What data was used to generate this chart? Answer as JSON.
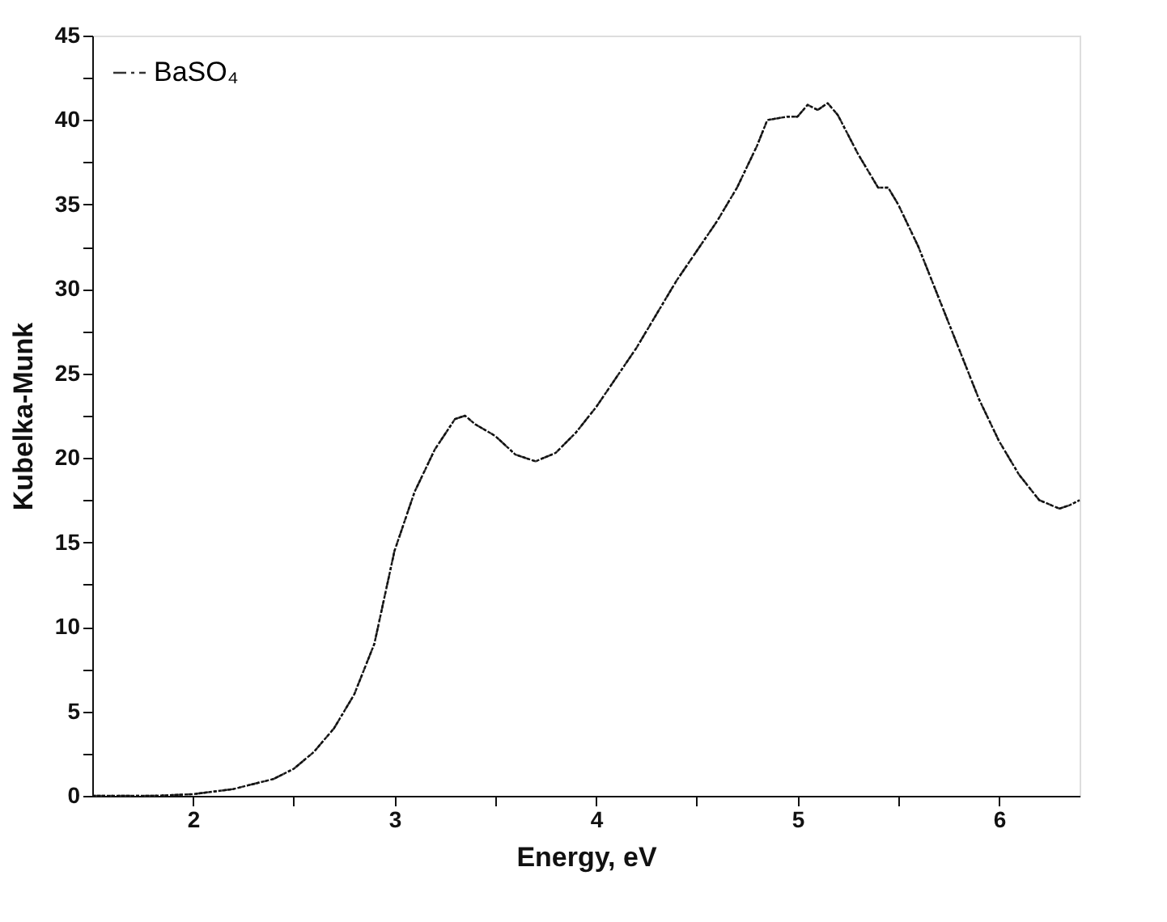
{
  "chart_data": {
    "type": "line",
    "xlabel": "Energy, eV",
    "ylabel": "Kubelka-Munk",
    "x": [
      1.5,
      1.8,
      2.0,
      2.2,
      2.4,
      2.5,
      2.6,
      2.7,
      2.8,
      2.9,
      3.0,
      3.1,
      3.2,
      3.3,
      3.35,
      3.4,
      3.5,
      3.6,
      3.7,
      3.8,
      3.9,
      4.0,
      4.2,
      4.4,
      4.6,
      4.7,
      4.8,
      4.85,
      4.95,
      5.0,
      5.05,
      5.1,
      5.15,
      5.2,
      5.3,
      5.4,
      5.45,
      5.5,
      5.6,
      5.7,
      5.8,
      5.9,
      6.0,
      6.1,
      6.2,
      6.3,
      6.35,
      6.4
    ],
    "series": [
      {
        "name": "BaSO₄",
        "color": "#333333",
        "line_style": "dashed",
        "values": [
          0,
          0,
          0.1,
          0.4,
          1.0,
          1.6,
          2.6,
          4.0,
          6.0,
          9.0,
          14.5,
          18.0,
          20.5,
          22.3,
          22.5,
          22.0,
          21.3,
          20.2,
          19.8,
          20.3,
          21.5,
          23.0,
          26.5,
          30.5,
          34.0,
          36.0,
          38.5,
          40.0,
          40.2,
          40.2,
          40.9,
          40.6,
          41.0,
          40.3,
          38.0,
          36.0,
          36.0,
          35.0,
          32.5,
          29.5,
          26.5,
          23.5,
          21.0,
          19.0,
          17.5,
          17.0,
          17.2,
          17.5
        ]
      },
      {
        "color": "#111111",
        "line_style": "dotted",
        "values": [
          0,
          0,
          0.1,
          0.4,
          1.0,
          1.6,
          2.6,
          4.0,
          6.0,
          9.0,
          14.5,
          18.0,
          20.5,
          22.3,
          22.5,
          22.0,
          21.3,
          20.2,
          19.8,
          20.3,
          21.5,
          23.0,
          26.5,
          30.5,
          34.0,
          36.0,
          38.5,
          40.0,
          40.2,
          40.2,
          40.9,
          40.6,
          41.0,
          40.3,
          38.0,
          36.0,
          36.0,
          35.0,
          32.5,
          29.5,
          26.5,
          23.5,
          21.0,
          19.0,
          17.5,
          17.0,
          17.2,
          17.5
        ]
      }
    ],
    "xlim": [
      1.5,
      6.4
    ],
    "xticks": [
      2,
      {
        "value": 2.5,
        "label": null
      },
      3,
      {
        "value": 3.5,
        "label": null
      },
      4,
      {
        "value": 4.5,
        "label": null
      },
      5,
      {
        "value": 5.5,
        "label": null
      },
      6
    ],
    "ylim": [
      0,
      45
    ],
    "yticks": [
      0,
      {
        "value": 2.5,
        "label": null
      },
      5,
      {
        "value": 7.5,
        "label": null
      },
      10,
      {
        "value": 12.5,
        "label": null
      },
      15,
      {
        "value": 17.5,
        "label": null
      },
      20,
      {
        "value": 22.5,
        "label": null
      },
      25,
      {
        "value": 27.5,
        "label": null
      },
      30,
      {
        "value": 32.5,
        "label": null
      },
      35,
      {
        "value": 37.5,
        "label": null
      },
      40,
      {
        "value": 42.5,
        "label": null
      },
      45
    ],
    "legend": "top left",
    "grid": false
  }
}
